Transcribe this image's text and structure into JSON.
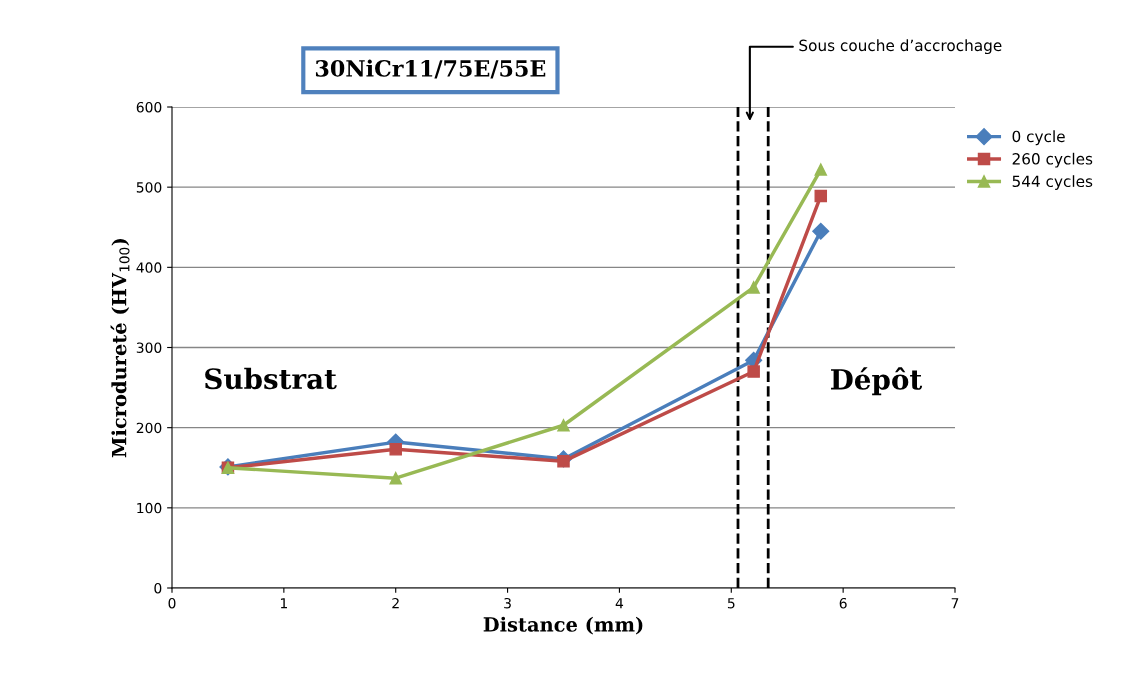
{
  "chart_data": {
    "type": "line",
    "title": "30NiCr11/75E/55E",
    "xlabel": "Distance (mm)",
    "ylabel": "Microdureté (HV$_{100}$)",
    "series": [
      {
        "name": "0 cycle",
        "color": "#4a7ebb",
        "marker": "diamond",
        "x": [
          0.5,
          2,
          3.5,
          5.2,
          5.8
        ],
        "values": [
          151,
          182,
          161,
          284,
          445
        ]
      },
      {
        "name": "260 cycles",
        "color": "#be4b48",
        "marker": "square",
        "x": [
          0.5,
          2,
          3.5,
          5.2,
          5.8
        ],
        "values": [
          150,
          173,
          158,
          270,
          489
        ]
      },
      {
        "name": "544 cycles",
        "color": "#98b954",
        "marker": "triangle",
        "x": [
          0.5,
          2,
          3.5,
          5.2,
          5.8
        ],
        "values": [
          150,
          137,
          203,
          375,
          522
        ]
      }
    ],
    "xlim": [
      0,
      7
    ],
    "xticks": [
      0,
      1,
      2,
      3,
      4,
      5,
      6,
      7
    ],
    "ylim": [
      0,
      600
    ],
    "yticks": [
      0,
      100,
      200,
      300,
      400,
      500,
      600
    ],
    "grid": "y",
    "legend": "right",
    "line_style": "solid",
    "ref_lines": [
      {
        "axis": "x",
        "value": 5.06,
        "color": "#000000",
        "line_style": "dashed"
      },
      {
        "axis": "x",
        "value": 5.33,
        "color": "#000000",
        "line_style": "dashed"
      }
    ],
    "annotations": [
      "Sous couche d’accrochage",
      "Substrat",
      "Dépôt"
    ]
  }
}
